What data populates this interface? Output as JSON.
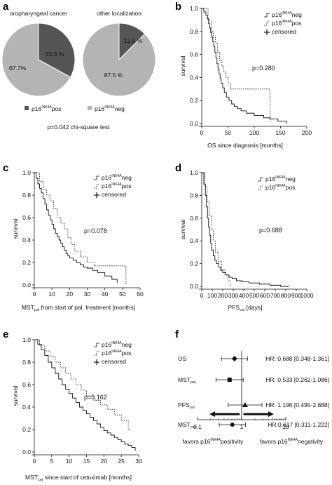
{
  "panel_a": {
    "letter": "a",
    "pie_left_title": "oropharyngeal cancer",
    "pie_right_title": "other localization",
    "legend_pos_label": "p16",
    "legend_neg_label": "p16",
    "gene_superscript": "INK4A",
    "legend_pos_suffix": "pos",
    "legend_neg_suffix": "neg",
    "test_note": "p=0.042 chi-square test"
  },
  "panel_b": {
    "letter": "b",
    "pvalue": "p=0.280",
    "legend": [
      "p16",
      "p16",
      "censored"
    ],
    "legend_suffix": [
      "neg",
      "pos",
      ""
    ],
    "superscript": "INK4A"
  },
  "panel_c": {
    "letter": "c",
    "pvalue": "p=0.078",
    "legend": [
      "p16",
      "p16",
      "censored"
    ],
    "legend_suffix": [
      "neg",
      "pos",
      ""
    ],
    "superscript": "INK4A"
  },
  "panel_d": {
    "letter": "d",
    "pvalue": "p=0.688",
    "legend": [
      "p16",
      "p16"
    ],
    "legend_suffix": [
      "neg",
      "pos"
    ],
    "superscript": "INK4A"
  },
  "panel_e": {
    "letter": "e",
    "pvalue": "p=0.162",
    "legend": [
      "p16",
      "p16",
      "censored"
    ],
    "legend_suffix": [
      "neg",
      "pos",
      ""
    ],
    "superscript": "INK4A"
  },
  "panel_f": {
    "letter": "f",
    "favors_left": "favors p16",
    "favors_left_suffix": "positivity",
    "favors_right": "favors p16",
    "favors_right_suffix": "negativity",
    "superscript": "INK4A"
  },
  "chart_data": [
    {
      "type": "pie",
      "title": "oropharyngeal cancer",
      "labels": [
        "33.3 %",
        "67.7%"
      ],
      "values": [
        33.3,
        67.7
      ],
      "series": [
        "p16 INK4A pos",
        "p16 INK4A neg"
      ],
      "colors": [
        "#555555",
        "#b4b4b4"
      ]
    },
    {
      "type": "pie",
      "title": "other localization",
      "labels": [
        "12.5 %",
        "87.5 %"
      ],
      "values": [
        12.5,
        87.5
      ],
      "series": [
        "p16 INK4A pos",
        "p16 INK4A neg"
      ],
      "colors": [
        "#555555",
        "#b4b4b4"
      ]
    },
    {
      "type": "line",
      "title": "",
      "xlabel": "OS since diagnosis [months]",
      "ylabel": "survival",
      "xlim": [
        0,
        200
      ],
      "ylim": [
        0,
        1
      ],
      "xticks": [
        0,
        50,
        100,
        150,
        200
      ],
      "yticks": [
        0.0,
        0.2,
        0.4,
        0.6,
        0.8,
        1.0
      ],
      "series": [
        {
          "name": "p16 INK4A neg",
          "dash": "solid",
          "x": [
            0,
            4,
            8,
            11,
            13,
            15,
            17,
            19,
            21,
            23,
            25,
            27,
            29,
            31,
            33,
            35,
            37,
            40,
            43,
            47,
            52,
            57,
            62,
            68,
            75,
            85,
            100,
            118,
            130,
            145,
            162
          ],
          "y": [
            1.0,
            0.97,
            0.94,
            0.91,
            0.87,
            0.83,
            0.79,
            0.75,
            0.71,
            0.67,
            0.62,
            0.57,
            0.52,
            0.47,
            0.43,
            0.39,
            0.35,
            0.31,
            0.27,
            0.23,
            0.2,
            0.17,
            0.15,
            0.13,
            0.11,
            0.09,
            0.07,
            0.05,
            0.04,
            0.02,
            0.0
          ]
        },
        {
          "name": "p16 INK4A pos",
          "dash": "dotted",
          "x": [
            0,
            12,
            18,
            22,
            26,
            30,
            34,
            38,
            42,
            46,
            50,
            55,
            60,
            70,
            80,
            95,
            130
          ],
          "y": [
            1.0,
            0.9,
            0.8,
            0.75,
            0.7,
            0.62,
            0.55,
            0.5,
            0.45,
            0.4,
            0.35,
            0.3,
            0.3,
            0.3,
            0.3,
            0.3,
            0.0
          ]
        }
      ],
      "pvalue": "p=0.280"
    },
    {
      "type": "line",
      "title": "",
      "xlabel": "MST pal from start of pal. treatment [months]",
      "ylabel": "survival",
      "xlim": [
        0,
        60
      ],
      "ylim": [
        0,
        1
      ],
      "xticks": [
        0,
        10,
        20,
        30,
        40,
        50,
        60
      ],
      "yticks": [
        0.0,
        0.2,
        0.4,
        0.6,
        0.8,
        1.0
      ],
      "series": [
        {
          "name": "p16 INK4A neg",
          "dash": "solid",
          "x": [
            0,
            1,
            2,
            3,
            4,
            5,
            6,
            7,
            8,
            9,
            10,
            11,
            12,
            13,
            14,
            15,
            16,
            17,
            18,
            19,
            20,
            22,
            24,
            26,
            28,
            30,
            33,
            36,
            40,
            44,
            47
          ],
          "y": [
            1.0,
            0.95,
            0.9,
            0.86,
            0.82,
            0.77,
            0.72,
            0.67,
            0.62,
            0.58,
            0.54,
            0.5,
            0.46,
            0.43,
            0.4,
            0.37,
            0.34,
            0.31,
            0.28,
            0.26,
            0.24,
            0.22,
            0.2,
            0.18,
            0.16,
            0.15,
            0.13,
            0.11,
            0.08,
            0.05,
            0.02
          ]
        },
        {
          "name": "p16 INK4A pos",
          "dash": "dotted",
          "x": [
            0,
            3,
            5,
            7,
            9,
            11,
            13,
            15,
            17,
            19,
            21,
            23,
            26,
            30,
            34,
            40,
            48,
            52
          ],
          "y": [
            1.0,
            0.92,
            0.85,
            0.8,
            0.75,
            0.68,
            0.6,
            0.55,
            0.5,
            0.42,
            0.36,
            0.3,
            0.25,
            0.2,
            0.17,
            0.17,
            0.17,
            0.0
          ]
        }
      ],
      "pvalue": "p=0.078"
    },
    {
      "type": "line",
      "title": "",
      "xlabel": "PFS cet [days]",
      "ylabel": "survival",
      "xlim": [
        0,
        1000
      ],
      "ylim": [
        0,
        1
      ],
      "xticks": [
        0,
        100,
        200,
        300,
        400,
        500,
        600,
        700,
        800,
        900,
        1000
      ],
      "yticks": [
        0.0,
        0.2,
        0.4,
        0.6,
        0.8,
        1.0
      ],
      "series": [
        {
          "name": "p16 INK4A neg",
          "dash": "solid",
          "x": [
            0,
            20,
            35,
            45,
            55,
            65,
            75,
            85,
            95,
            110,
            125,
            140,
            160,
            180,
            200,
            230,
            260,
            290,
            330,
            380,
            450,
            550,
            650,
            750,
            830
          ],
          "y": [
            1.0,
            0.9,
            0.8,
            0.7,
            0.6,
            0.52,
            0.45,
            0.38,
            0.32,
            0.27,
            0.23,
            0.2,
            0.17,
            0.14,
            0.12,
            0.1,
            0.08,
            0.07,
            0.05,
            0.04,
            0.03,
            0.02,
            0.01,
            0.0,
            0.0
          ]
        },
        {
          "name": "p16 INK4A pos",
          "dash": "dotted",
          "x": [
            0,
            30,
            50,
            70,
            90,
            110,
            130,
            160,
            190,
            220,
            250,
            270
          ],
          "y": [
            1.0,
            0.88,
            0.75,
            0.62,
            0.5,
            0.4,
            0.3,
            0.22,
            0.15,
            0.1,
            0.05,
            0.0
          ]
        }
      ],
      "pvalue": "p=0.688"
    },
    {
      "type": "line",
      "title": "",
      "xlabel": "MST cet since start of cetuximab [months]",
      "ylabel": "survival",
      "xlim": [
        0,
        30
      ],
      "ylim": [
        0,
        1
      ],
      "xticks": [
        0,
        5,
        10,
        15,
        20,
        25,
        30
      ],
      "yticks": [
        0.0,
        0.2,
        0.4,
        0.6,
        0.8,
        1.0
      ],
      "series": [
        {
          "name": "p16 INK4A neg",
          "dash": "solid",
          "x": [
            0,
            1,
            2,
            3,
            4,
            5,
            6,
            7,
            8,
            9,
            10,
            11,
            12,
            13,
            14,
            15,
            16,
            17,
            18,
            19,
            20,
            21,
            22,
            23,
            24,
            25,
            26,
            27,
            28,
            29
          ],
          "y": [
            1.0,
            0.96,
            0.91,
            0.86,
            0.8,
            0.75,
            0.7,
            0.65,
            0.6,
            0.56,
            0.52,
            0.48,
            0.44,
            0.4,
            0.37,
            0.34,
            0.31,
            0.28,
            0.25,
            0.22,
            0.19,
            0.17,
            0.15,
            0.13,
            0.11,
            0.09,
            0.07,
            0.06,
            0.04,
            0.01
          ]
        },
        {
          "name": "p16 INK4A pos",
          "dash": "dotted",
          "x": [
            0,
            1.5,
            3,
            4.5,
            6,
            7.5,
            9,
            10.5,
            12,
            13.5,
            15,
            17,
            19,
            21,
            23,
            25,
            27,
            28
          ],
          "y": [
            1.0,
            0.95,
            0.9,
            0.85,
            0.8,
            0.75,
            0.7,
            0.65,
            0.6,
            0.55,
            0.5,
            0.46,
            0.42,
            0.38,
            0.33,
            0.28,
            0.2,
            0.2
          ]
        }
      ],
      "pvalue": "p=0.162"
    },
    {
      "type": "scatter",
      "subtype": "forest",
      "xscale": "log",
      "xlim": [
        0.1,
        10
      ],
      "xticks": [
        0.1,
        1,
        10
      ],
      "xtick_labels": [
        "0.1",
        "1",
        "10"
      ],
      "rows": [
        {
          "label": "OS",
          "sub": "",
          "hr": 0.688,
          "lo": 0.348,
          "hi": 1.361,
          "marker": "diamond",
          "text": "HR: 0.688 [0.348-1.361]"
        },
        {
          "label": "MST",
          "sub": "pal",
          "hr": 0.533,
          "lo": 0.262,
          "hi": 1.086,
          "marker": "square",
          "text": "HR: 0.533 [0.262-1.086]"
        },
        {
          "label": "PFS",
          "sub": "cet",
          "hr": 1.196,
          "lo": 0.495,
          "hi": 2.888,
          "marker": "triangle",
          "text": "HR: 1.196 [0.495-2.888]"
        },
        {
          "label": "MST",
          "sub": "cet",
          "hr": 0.617,
          "lo": 0.311,
          "hi": 1.222,
          "marker": "circle",
          "text": "HR:0.617 [0.311-1.222]"
        }
      ]
    }
  ]
}
